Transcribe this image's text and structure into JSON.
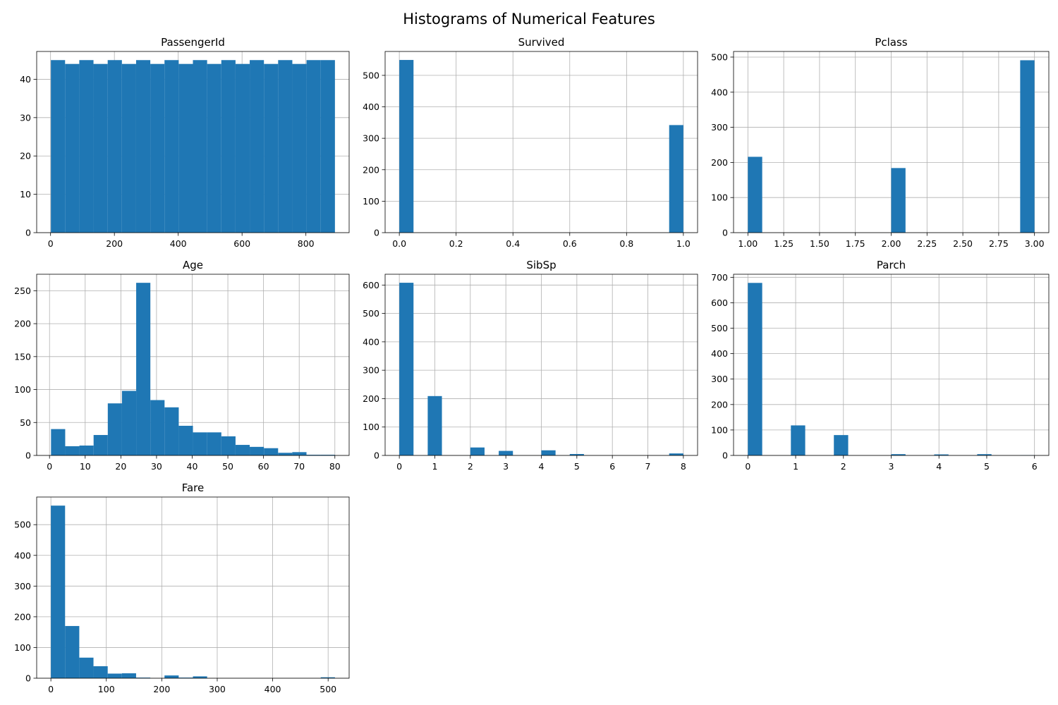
{
  "figure": {
    "title": "Histograms of Numerical Features",
    "bar_color": "#1f77b4",
    "grid_color": "#b0b0b0"
  },
  "chart_data": [
    {
      "type": "bar",
      "title": "PassengerId",
      "bins": 20,
      "bin_range": [
        1,
        891
      ],
      "values": [
        45,
        44,
        45,
        44,
        45,
        44,
        45,
        44,
        45,
        44,
        45,
        44,
        45,
        44,
        45,
        44,
        45,
        44,
        45,
        45
      ],
      "xlim": [
        -43.5,
        935.5
      ],
      "ylim": [
        0,
        47.25
      ],
      "xticks": [
        0,
        200,
        400,
        600,
        800
      ],
      "xtick_labels": [
        "0",
        "200",
        "400",
        "600",
        "800"
      ],
      "yticks": [
        0,
        10,
        20,
        30,
        40
      ],
      "ytick_labels": [
        "0",
        "10",
        "20",
        "30",
        "40"
      ],
      "grid": true
    },
    {
      "type": "bar",
      "title": "Survived",
      "bins": 20,
      "bin_range": [
        0,
        1
      ],
      "values": [
        549,
        0,
        0,
        0,
        0,
        0,
        0,
        0,
        0,
        0,
        0,
        0,
        0,
        0,
        0,
        0,
        0,
        0,
        0,
        342
      ],
      "xlim": [
        -0.05,
        1.05
      ],
      "ylim": [
        0,
        576
      ],
      "xticks": [
        0,
        0.2,
        0.4,
        0.6,
        0.8,
        1.0
      ],
      "xtick_labels": [
        "0.0",
        "0.2",
        "0.4",
        "0.6",
        "0.8",
        "1.0"
      ],
      "yticks": [
        0,
        100,
        200,
        300,
        400,
        500
      ],
      "ytick_labels": [
        "0",
        "100",
        "200",
        "300",
        "400",
        "500"
      ],
      "grid": true
    },
    {
      "type": "bar",
      "title": "Pclass",
      "bins": 20,
      "bin_range": [
        1,
        3
      ],
      "values": [
        216,
        0,
        0,
        0,
        0,
        0,
        0,
        0,
        0,
        0,
        184,
        0,
        0,
        0,
        0,
        0,
        0,
        0,
        0,
        491
      ],
      "xlim": [
        0.9,
        3.1
      ],
      "ylim": [
        0,
        516
      ],
      "xticks": [
        1.0,
        1.25,
        1.5,
        1.75,
        2.0,
        2.25,
        2.5,
        2.75,
        3.0
      ],
      "xtick_labels": [
        "1.00",
        "1.25",
        "1.50",
        "1.75",
        "2.00",
        "2.25",
        "2.50",
        "2.75",
        "3.00"
      ],
      "yticks": [
        0,
        100,
        200,
        300,
        400,
        500
      ],
      "ytick_labels": [
        "0",
        "100",
        "200",
        "300",
        "400",
        "500"
      ],
      "grid": true
    },
    {
      "type": "bar",
      "title": "Age",
      "bins": 20,
      "bin_range": [
        0.42,
        80
      ],
      "values": [
        40,
        14,
        15,
        31,
        79,
        98,
        262,
        84,
        73,
        45,
        35,
        35,
        29,
        16,
        13,
        11,
        4,
        5,
        1,
        1
      ],
      "xlim": [
        -3.6,
        84.0
      ],
      "ylim": [
        0,
        275
      ],
      "xticks": [
        0,
        10,
        20,
        30,
        40,
        50,
        60,
        70,
        80
      ],
      "xtick_labels": [
        "0",
        "10",
        "20",
        "30",
        "40",
        "50",
        "60",
        "70",
        "80"
      ],
      "yticks": [
        0,
        50,
        100,
        150,
        200,
        250
      ],
      "ytick_labels": [
        "0",
        "50",
        "100",
        "150",
        "200",
        "250"
      ],
      "grid": true
    },
    {
      "type": "bar",
      "title": "SibSp",
      "bins": 20,
      "bin_range": [
        0,
        8
      ],
      "values": [
        608,
        0,
        209,
        0,
        0,
        28,
        0,
        16,
        0,
        0,
        18,
        0,
        5,
        0,
        0,
        0,
        0,
        0,
        0,
        7
      ],
      "xlim": [
        -0.4,
        8.4
      ],
      "ylim": [
        0,
        638
      ],
      "xticks": [
        0,
        1,
        2,
        3,
        4,
        5,
        6,
        7,
        8
      ],
      "xtick_labels": [
        "0",
        "1",
        "2",
        "3",
        "4",
        "5",
        "6",
        "7",
        "8"
      ],
      "yticks": [
        0,
        100,
        200,
        300,
        400,
        500,
        600
      ],
      "ytick_labels": [
        "0",
        "100",
        "200",
        "300",
        "400",
        "500",
        "600"
      ],
      "grid": true
    },
    {
      "type": "bar",
      "title": "Parch",
      "bins": 20,
      "bin_range": [
        0,
        6
      ],
      "values": [
        678,
        0,
        0,
        118,
        0,
        0,
        80,
        0,
        0,
        0,
        5,
        0,
        0,
        4,
        0,
        0,
        5,
        0,
        0,
        1
      ],
      "xlim": [
        -0.3,
        6.3
      ],
      "ylim": [
        0,
        712
      ],
      "xticks": [
        0,
        1,
        2,
        3,
        4,
        5,
        6
      ],
      "xtick_labels": [
        "0",
        "1",
        "2",
        "3",
        "4",
        "5",
        "6"
      ],
      "yticks": [
        0,
        100,
        200,
        300,
        400,
        500,
        600,
        700
      ],
      "ytick_labels": [
        "0",
        "100",
        "200",
        "300",
        "400",
        "500",
        "600",
        "700"
      ],
      "grid": true
    },
    {
      "type": "bar",
      "title": "Fare",
      "bins": 20,
      "bin_range": [
        0,
        512.33
      ],
      "values": [
        562,
        170,
        67,
        39,
        15,
        16,
        2,
        0,
        9,
        2,
        6,
        0,
        0,
        0,
        0,
        0,
        0,
        0,
        0,
        3
      ],
      "xlim": [
        -25.6,
        537.9
      ],
      "ylim": [
        0,
        590
      ],
      "xticks": [
        0,
        100,
        200,
        300,
        400,
        500
      ],
      "xtick_labels": [
        "0",
        "100",
        "200",
        "300",
        "400",
        "500"
      ],
      "yticks": [
        0,
        100,
        200,
        300,
        400,
        500
      ],
      "ytick_labels": [
        "0",
        "100",
        "200",
        "300",
        "400",
        "500"
      ],
      "grid": true
    }
  ]
}
